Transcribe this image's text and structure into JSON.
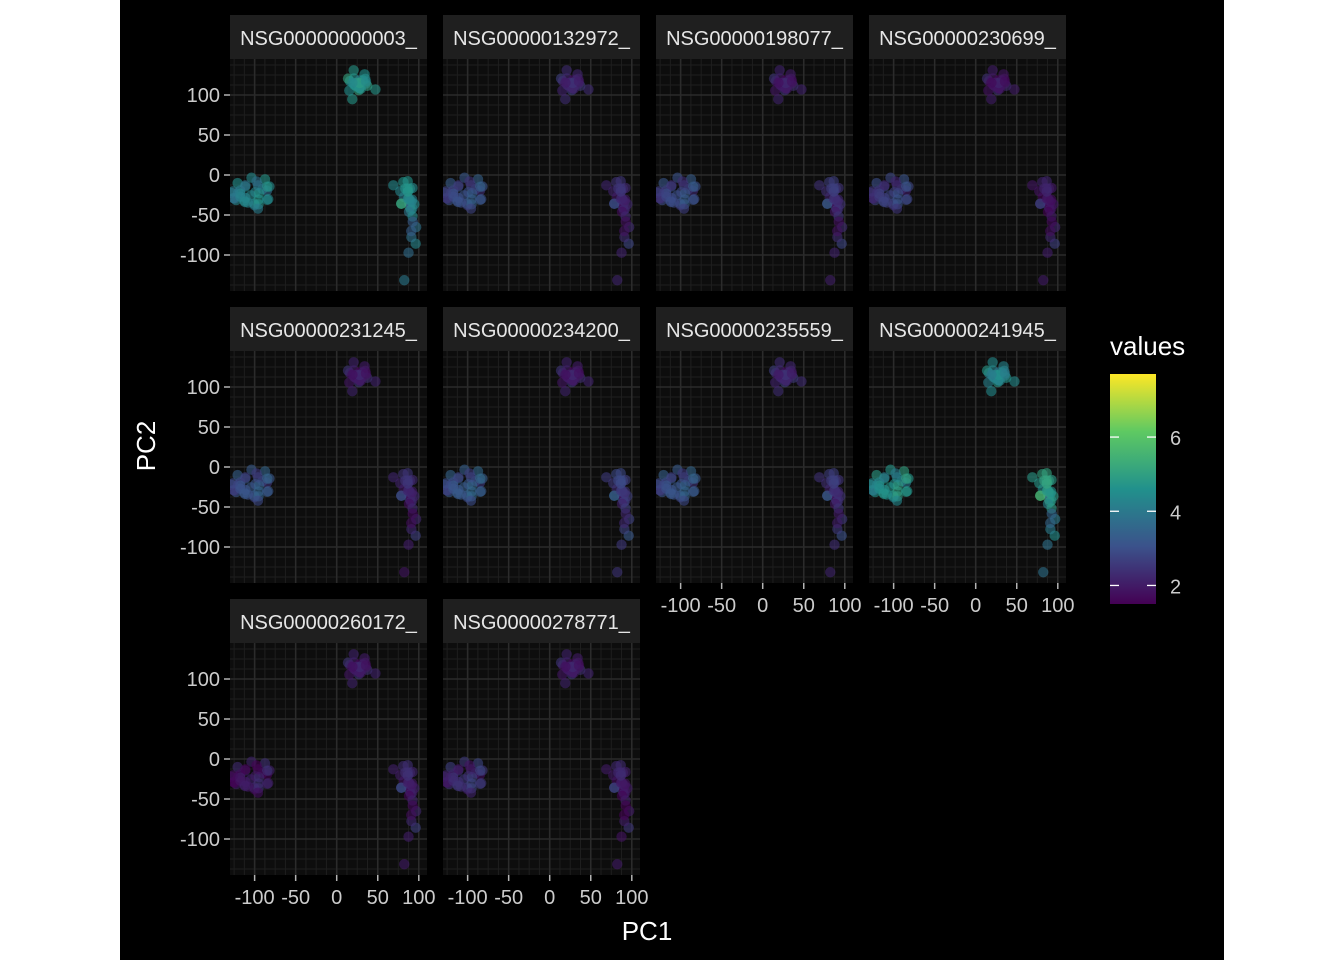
{
  "chart_data": {
    "type": "scatter",
    "title": "",
    "xlabel": "PC1",
    "ylabel": "PC2",
    "xlim": [
      -130,
      110
    ],
    "ylim": [
      -145,
      145
    ],
    "x_ticks": [
      -100,
      -50,
      0,
      50,
      100
    ],
    "x_tick_labels": [
      "-100",
      "-50",
      "0",
      "50",
      "100"
    ],
    "y_ticks": [
      100,
      50,
      0,
      -50,
      -100
    ],
    "y_tick_labels": [
      "100",
      "50",
      "0",
      "-50",
      "-100"
    ],
    "grid": true,
    "legend": {
      "title": "values",
      "placement": "right",
      "type": "colorbar",
      "colormap": "viridis",
      "range": [
        1.5,
        7.7
      ],
      "ticks": [
        6,
        4,
        2
      ],
      "tick_labels": [
        "6",
        "4",
        "2"
      ]
    },
    "colors": {
      "background": "#000000",
      "panel": "#0d0d0d",
      "grid": "#2b2b2b",
      "strip": "#1f1f1f",
      "text": "#cccccc"
    },
    "panels": [
      {
        "label": "NSG00000000003_",
        "values": {
          "A": 4.6,
          "B": 4.2,
          "C": 4.5,
          "D": 3.8,
          "E": 4.0
        }
      },
      {
        "label": "NSG00000132972_",
        "values": {
          "A": 2.2,
          "B": 2.9,
          "C": 2.3,
          "D": 2.3,
          "E": 2.2
        }
      },
      {
        "label": "NSG00000198077_",
        "values": {
          "A": 2.0,
          "B": 2.8,
          "C": 2.5,
          "D": 2.3,
          "E": 2.1
        }
      },
      {
        "label": "NSG00000230699_",
        "values": {
          "A": 1.9,
          "B": 2.6,
          "C": 2.0,
          "D": 2.2,
          "E": 2.0
        }
      },
      {
        "label": "NSG00000231245_",
        "values": {
          "A": 2.0,
          "B": 3.0,
          "C": 2.3,
          "D": 2.2,
          "E": 1.9
        }
      },
      {
        "label": "NSG00000234200_",
        "values": {
          "A": 2.0,
          "B": 3.1,
          "C": 2.7,
          "D": 2.7,
          "E": 2.5
        }
      },
      {
        "label": "NSG00000235559_",
        "values": {
          "A": 2.2,
          "B": 3.0,
          "C": 2.5,
          "D": 2.5,
          "E": 2.2
        }
      },
      {
        "label": "NSG00000241945_",
        "values": {
          "A": 4.3,
          "B": 4.5,
          "C": 4.9,
          "D": 4.0,
          "E": 3.8
        }
      },
      {
        "label": "NSG00000260172_",
        "values": {
          "A": 2.0,
          "B": 1.9,
          "C": 2.2,
          "D": 2.2,
          "E": 2.0
        }
      },
      {
        "label": "NSG00000278771_",
        "values": {
          "A": 2.0,
          "B": 2.3,
          "C": 2.1,
          "D": 2.0,
          "E": 2.0
        }
      }
    ],
    "clusters": [
      {
        "id": "A",
        "cx": 25,
        "cy": 115,
        "sx": 8,
        "sy": 11,
        "n": 24
      },
      {
        "id": "B",
        "cx": -102,
        "cy": -22,
        "sx": 14,
        "sy": 11,
        "n": 34
      },
      {
        "id": "C",
        "cx": 87,
        "cy": -30,
        "sx": 7,
        "sy": 15,
        "n": 26
      },
      {
        "id": "D",
        "cx": 90,
        "cy": -80,
        "sx": 5,
        "sy": 20,
        "n": 6
      },
      {
        "id": "E",
        "cx": 82,
        "cy": -133,
        "sx": 3,
        "sy": 3,
        "n": 1
      }
    ]
  }
}
